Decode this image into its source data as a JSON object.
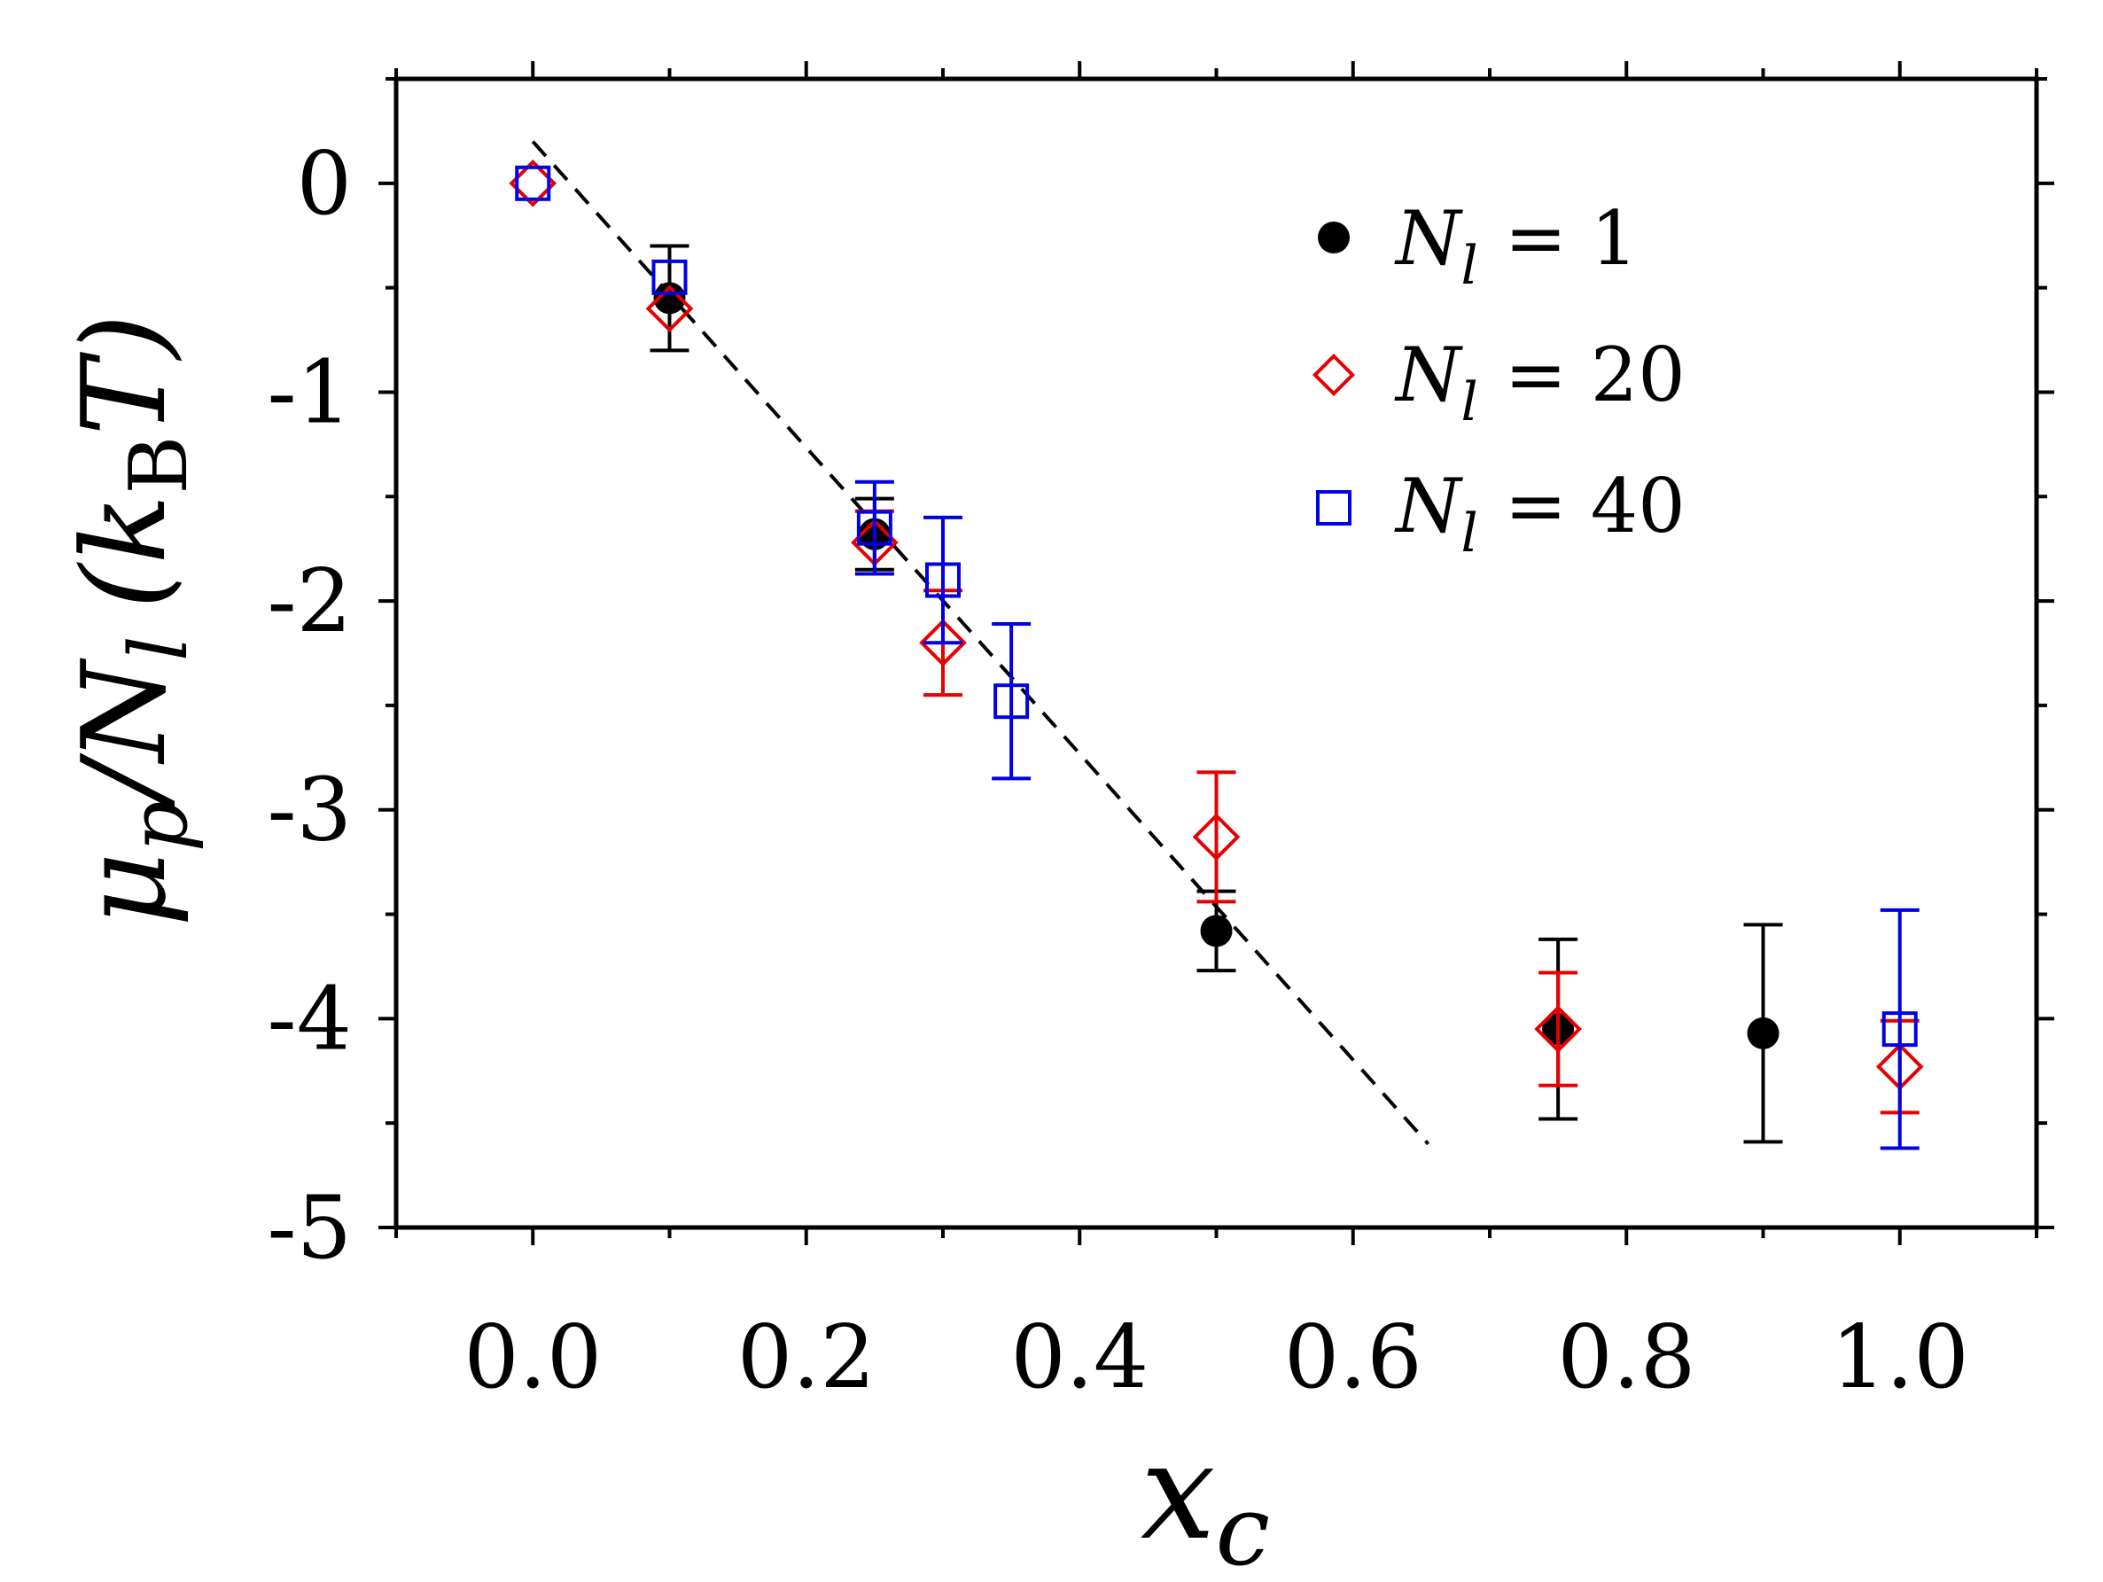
{
  "chart_data": {
    "type": "scatter",
    "title": "",
    "xlabel": "x_c",
    "xlabel_base": "x",
    "xlabel_sub": "c",
    "ylabel_main": "μ",
    "ylabel_sub1": "p",
    "ylabel_mid": "/N",
    "ylabel_sub2": "l",
    "ylabel_unit_k": "(k",
    "ylabel_unit_sub": "B",
    "ylabel_unit_tail": "T)",
    "xlim": [
      -0.1,
      1.1
    ],
    "ylim": [
      -5,
      0.5
    ],
    "x_ticks": [
      0.0,
      0.2,
      0.4,
      0.6,
      0.8,
      1.0
    ],
    "x_tick_labels": [
      "0.0",
      "0.2",
      "0.4",
      "0.6",
      "0.8",
      "1.0"
    ],
    "y_ticks": [
      0,
      -1,
      -2,
      -3,
      -4,
      -5
    ],
    "y_tick_labels": [
      "0",
      "-1",
      "-2",
      "-3",
      "-4",
      "-5"
    ],
    "grid": false,
    "legend_position": "top-right",
    "series": [
      {
        "name": "N_l = 1",
        "legend_label": "N",
        "legend_sub": "l",
        "legend_eq": "= 1",
        "marker": "circle-filled",
        "color": "#000000",
        "points": [
          {
            "x": 0.1,
            "y": -0.55,
            "err": 0.25
          },
          {
            "x": 0.25,
            "y": -1.68,
            "err": 0.17
          },
          {
            "x": 0.5,
            "y": -3.58,
            "err": 0.19
          },
          {
            "x": 0.75,
            "y": -4.05,
            "err": 0.43
          },
          {
            "x": 0.9,
            "y": -4.07,
            "err": 0.52
          }
        ]
      },
      {
        "name": "N_l = 20",
        "legend_label": "N",
        "legend_sub": "l",
        "legend_eq": "= 20",
        "marker": "diamond-open",
        "color": "#e60000",
        "points": [
          {
            "x": 0.0,
            "y": 0.0,
            "err": 0.0
          },
          {
            "x": 0.1,
            "y": -0.6,
            "err": 0.0
          },
          {
            "x": 0.25,
            "y": -1.72,
            "err": 0.15
          },
          {
            "x": 0.3,
            "y": -2.2,
            "err": 0.25
          },
          {
            "x": 0.5,
            "y": -3.13,
            "err": 0.31
          },
          {
            "x": 0.75,
            "y": -4.05,
            "err": 0.27
          },
          {
            "x": 1.0,
            "y": -4.23,
            "err": 0.22
          }
        ]
      },
      {
        "name": "N_l = 40",
        "legend_label": "N",
        "legend_sub": "l",
        "legend_eq": "= 40",
        "marker": "square-open",
        "color": "#0000e6",
        "points": [
          {
            "x": 0.0,
            "y": 0.0,
            "err": 0.0
          },
          {
            "x": 0.1,
            "y": -0.45,
            "err": 0.0
          },
          {
            "x": 0.25,
            "y": -1.65,
            "err": 0.22
          },
          {
            "x": 0.3,
            "y": -1.9,
            "err": 0.3
          },
          {
            "x": 0.35,
            "y": -2.48,
            "err": 0.37
          },
          {
            "x": 1.0,
            "y": -4.05,
            "err": 0.57
          }
        ]
      }
    ],
    "fit_line": {
      "style": "dashed",
      "color": "#000000",
      "points": [
        {
          "x": 0.0,
          "y": 0.2
        },
        {
          "x": 0.655,
          "y": -4.6
        }
      ]
    }
  }
}
